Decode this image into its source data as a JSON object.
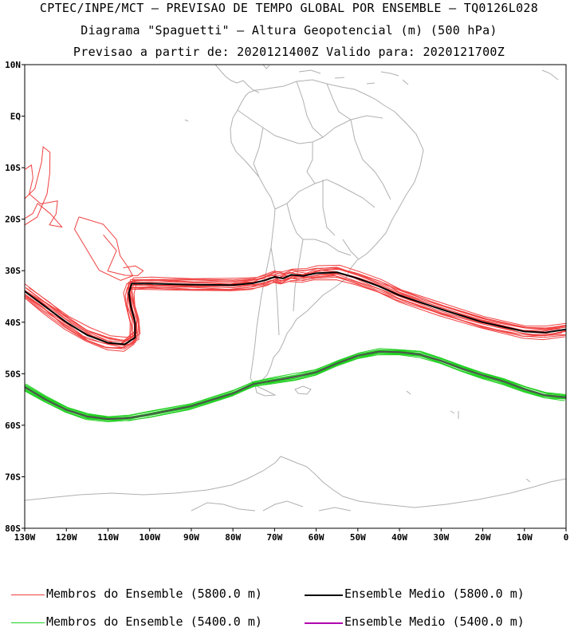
{
  "titles": {
    "line1": "CPTEC/INPE/MCT – PREVISAO DE TEMPO GLOBAL POR ENSEMBLE – TQ0126L028",
    "line2": "Diagrama \"Spaguetti\" – Altura Geopotencial (m) (500 hPa)",
    "line3": "Previsao a partir de: 2020121400Z  Valido para: 2020121700Z"
  },
  "axes": {
    "lat_labels": [
      "10N",
      "EQ",
      "10S",
      "20S",
      "30S",
      "40S",
      "50S",
      "60S",
      "70S",
      "80S"
    ],
    "lon_labels": [
      "130W",
      "120W",
      "110W",
      "100W",
      "90W",
      "80W",
      "70W",
      "60W",
      "50W",
      "40W",
      "30W",
      "20W",
      "10W",
      "0"
    ],
    "lat_range": [
      -80,
      10
    ],
    "lon_range": [
      -130,
      0
    ]
  },
  "colors": {
    "member_5800": "#f04040",
    "mean_5800": "#000000",
    "member_5400": "#20d020",
    "mean_5400": "#b000b0",
    "coast": "#b0b0b0"
  },
  "legend": {
    "member_5800": "Membros do Ensemble (5800.0 m)",
    "mean_5800": "Ensemble Medio (5800.0 m)",
    "member_5400": "Membros do Ensemble (5400.0 m)",
    "mean_5400": "Ensemble Medio (5400.0 m)"
  }
}
